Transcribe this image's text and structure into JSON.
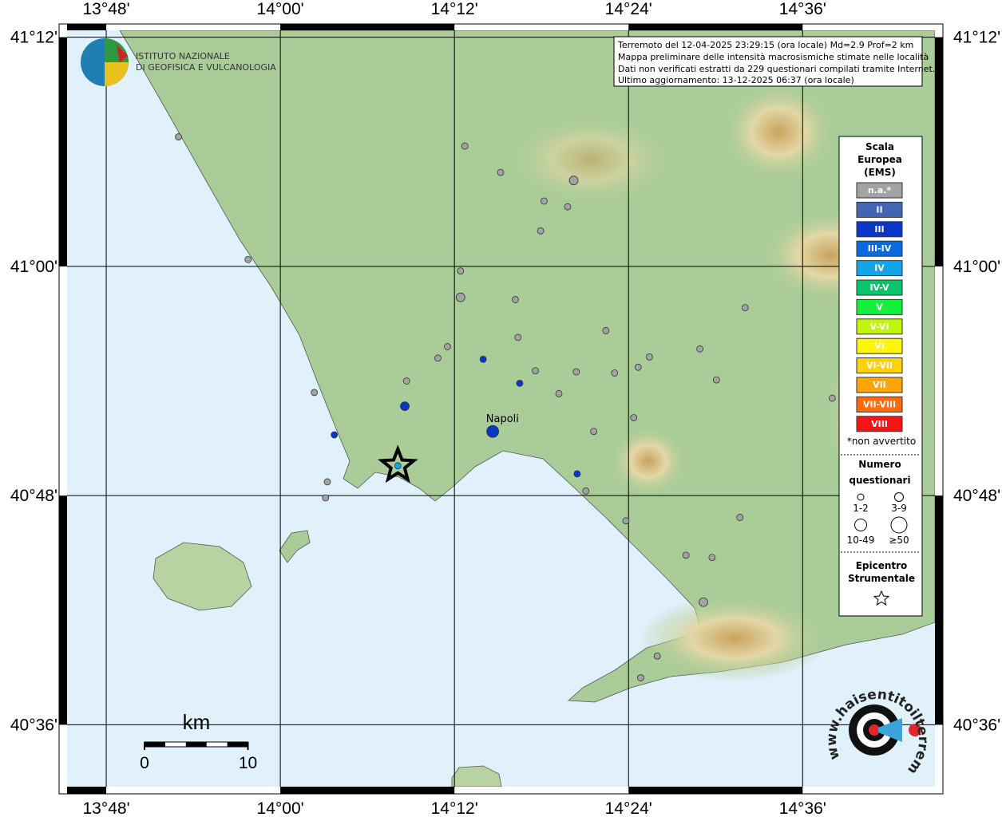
{
  "header": {
    "lines": [
      "Terremoto del 12-04-2025 23:29:15 (ora locale) Md=2.9 Prof=2 km",
      "Mappa preliminare delle intensità macrosismiche stimate nelle località",
      "Dati non verificati estratti da 229 questionari compilati tramite Internet.",
      "Ultimo aggiornamento: 13-12-2025 06:37 (ora locale)"
    ]
  },
  "logo": {
    "lines": [
      "ISTITUTO NAZIONALE",
      "DI GEOFISICA E VULCANOLOGIA"
    ]
  },
  "site_logo": {
    "text": "www.haisentitoilterremoto.it"
  },
  "map": {
    "lon_range": [
      13.755,
      14.752
    ],
    "lat_range": [
      40.546,
      41.206
    ],
    "lon_ticks": [
      {
        "value": 13.8,
        "label": "13°48'"
      },
      {
        "value": 14.0,
        "label": "14°00'"
      },
      {
        "value": 14.2,
        "label": "14°12'"
      },
      {
        "value": 14.4,
        "label": "14°24'"
      },
      {
        "value": 14.6,
        "label": "14°36'"
      }
    ],
    "lat_ticks": [
      {
        "value": 41.2,
        "label": "41°12'"
      },
      {
        "value": 41.0,
        "label": "41°00'"
      },
      {
        "value": 40.8,
        "label": "40°48'"
      },
      {
        "value": 40.6,
        "label": "40°36'"
      }
    ],
    "places": [
      {
        "name": "Napoli",
        "lon": 14.24,
        "lat": 40.862
      }
    ],
    "epicenter": {
      "lon": 14.135,
      "lat": 40.826
    },
    "points": [
      {
        "lon": 13.883,
        "lat": 41.113,
        "intensity": "n.a.*",
        "responses": "1-2"
      },
      {
        "lon": 13.963,
        "lat": 41.006,
        "intensity": "n.a.*",
        "responses": "1-2"
      },
      {
        "lon": 14.212,
        "lat": 41.105,
        "intensity": "n.a.*",
        "responses": "1-2"
      },
      {
        "lon": 14.253,
        "lat": 41.082,
        "intensity": "n.a.*",
        "responses": "1-2"
      },
      {
        "lon": 14.337,
        "lat": 41.075,
        "intensity": "n.a.*",
        "responses": "3-9"
      },
      {
        "lon": 14.303,
        "lat": 41.057,
        "intensity": "n.a.*",
        "responses": "1-2"
      },
      {
        "lon": 14.33,
        "lat": 41.052,
        "intensity": "n.a.*",
        "responses": "1-2"
      },
      {
        "lon": 14.299,
        "lat": 41.031,
        "intensity": "n.a.*",
        "responses": "1-2"
      },
      {
        "lon": 14.207,
        "lat": 40.996,
        "intensity": "n.a.*",
        "responses": "1-2"
      },
      {
        "lon": 14.207,
        "lat": 40.973,
        "intensity": "n.a.*",
        "responses": "3-9"
      },
      {
        "lon": 14.27,
        "lat": 40.971,
        "intensity": "n.a.*",
        "responses": "1-2"
      },
      {
        "lon": 14.273,
        "lat": 40.938,
        "intensity": "n.a.*",
        "responses": "1-2"
      },
      {
        "lon": 14.374,
        "lat": 40.944,
        "intensity": "n.a.*",
        "responses": "1-2"
      },
      {
        "lon": 14.192,
        "lat": 40.93,
        "intensity": "n.a.*",
        "responses": "1-2"
      },
      {
        "lon": 14.181,
        "lat": 40.92,
        "intensity": "n.a.*",
        "responses": "1-2"
      },
      {
        "lon": 14.145,
        "lat": 40.9,
        "intensity": "n.a.*",
        "responses": "1-2"
      },
      {
        "lon": 14.293,
        "lat": 40.909,
        "intensity": "n.a.*",
        "responses": "1-2"
      },
      {
        "lon": 14.34,
        "lat": 40.908,
        "intensity": "n.a.*",
        "responses": "1-2"
      },
      {
        "lon": 14.384,
        "lat": 40.907,
        "intensity": "n.a.*",
        "responses": "1-2"
      },
      {
        "lon": 14.411,
        "lat": 40.912,
        "intensity": "n.a.*",
        "responses": "1-2"
      },
      {
        "lon": 14.424,
        "lat": 40.921,
        "intensity": "n.a.*",
        "responses": "1-2"
      },
      {
        "lon": 14.482,
        "lat": 40.928,
        "intensity": "n.a.*",
        "responses": "1-2"
      },
      {
        "lon": 14.501,
        "lat": 40.901,
        "intensity": "n.a.*",
        "responses": "1-2"
      },
      {
        "lon": 14.534,
        "lat": 40.964,
        "intensity": "n.a.*",
        "responses": "1-2"
      },
      {
        "lon": 14.634,
        "lat": 40.885,
        "intensity": "n.a.*",
        "responses": "1-2"
      },
      {
        "lon": 14.32,
        "lat": 40.889,
        "intensity": "n.a.*",
        "responses": "1-2"
      },
      {
        "lon": 14.406,
        "lat": 40.868,
        "intensity": "n.a.*",
        "responses": "1-2"
      },
      {
        "lon": 14.36,
        "lat": 40.856,
        "intensity": "n.a.*",
        "responses": "1-2"
      },
      {
        "lon": 14.039,
        "lat": 40.89,
        "intensity": "n.a.*",
        "responses": "1-2"
      },
      {
        "lon": 14.054,
        "lat": 40.812,
        "intensity": "n.a.*",
        "responses": "1-2"
      },
      {
        "lon": 14.052,
        "lat": 40.798,
        "intensity": "n.a.*",
        "responses": "1-2"
      },
      {
        "lon": 14.351,
        "lat": 40.804,
        "intensity": "n.a.*",
        "responses": "1-2"
      },
      {
        "lon": 14.397,
        "lat": 40.778,
        "intensity": "n.a.*",
        "responses": "1-2"
      },
      {
        "lon": 14.528,
        "lat": 40.781,
        "intensity": "n.a.*",
        "responses": "1-2"
      },
      {
        "lon": 14.466,
        "lat": 40.748,
        "intensity": "n.a.*",
        "responses": "1-2"
      },
      {
        "lon": 14.496,
        "lat": 40.746,
        "intensity": "n.a.*",
        "responses": "1-2"
      },
      {
        "lon": 14.486,
        "lat": 40.707,
        "intensity": "n.a.*",
        "responses": "3-9"
      },
      {
        "lon": 14.433,
        "lat": 40.66,
        "intensity": "n.a.*",
        "responses": "1-2"
      },
      {
        "lon": 14.414,
        "lat": 40.641,
        "intensity": "n.a.*",
        "responses": "1-2"
      },
      {
        "lon": 14.233,
        "lat": 40.919,
        "intensity": "III",
        "responses": "1-2"
      },
      {
        "lon": 14.275,
        "lat": 40.898,
        "intensity": "III",
        "responses": "1-2"
      },
      {
        "lon": 14.143,
        "lat": 40.878,
        "intensity": "III",
        "responses": "3-9"
      },
      {
        "lon": 14.062,
        "lat": 40.853,
        "intensity": "III",
        "responses": "1-2"
      },
      {
        "lon": 14.244,
        "lat": 40.856,
        "intensity": "III",
        "responses": "10-49"
      },
      {
        "lon": 14.341,
        "lat": 40.819,
        "intensity": "III",
        "responses": "1-2"
      },
      {
        "lon": 14.135,
        "lat": 40.826,
        "intensity": "IV",
        "responses": "1-2"
      }
    ]
  },
  "legend": {
    "title": [
      "Scala",
      "Europea",
      "(EMS)"
    ],
    "classes": [
      {
        "label": "n.a.*",
        "color": "#a3a3a3"
      },
      {
        "label": "II",
        "color": "#4464b4"
      },
      {
        "label": "III",
        "color": "#0a37c8"
      },
      {
        "label": "III-IV",
        "color": "#0a6be0"
      },
      {
        "label": "IV",
        "color": "#14a5e8"
      },
      {
        "label": "IV-V",
        "color": "#0ac36a"
      },
      {
        "label": "V",
        "color": "#14f03c"
      },
      {
        "label": "V-VI",
        "color": "#c3f50a"
      },
      {
        "label": "VI",
        "color": "#fff50a"
      },
      {
        "label": "VI-VII",
        "color": "#ffd20a"
      },
      {
        "label": "VII",
        "color": "#ffa50a"
      },
      {
        "label": "VII-VIII",
        "color": "#ff6a0a"
      },
      {
        "label": "VIII",
        "color": "#f51414"
      }
    ],
    "note": "*non avvertito",
    "size_title": [
      "Numero",
      "questionari"
    ],
    "sizes": [
      "1-2",
      "3-9",
      "10-49",
      "≥50"
    ],
    "epicenter_title": [
      "Epicentro",
      "Strumentale"
    ]
  },
  "scale_bar": {
    "title": "km",
    "ticks": [
      0,
      10
    ]
  }
}
